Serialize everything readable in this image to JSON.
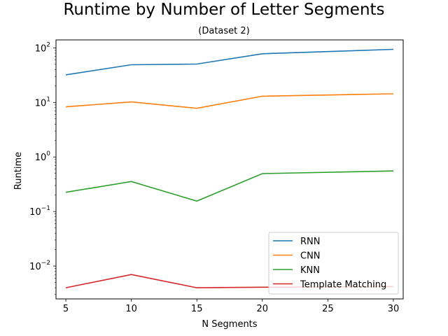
{
  "chart_data": {
    "type": "line",
    "title": "Runtime by Number of Letter Segments",
    "subtitle": "(Dataset 2)",
    "xlabel": "N Segments",
    "ylabel": "Runtime",
    "yscale": "log",
    "xlim": [
      4.25,
      30.75
    ],
    "ylim": [
      0.0025,
      140
    ],
    "x": [
      5,
      10,
      15,
      20,
      30
    ],
    "xticks": [
      5,
      10,
      15,
      20,
      25,
      30
    ],
    "yticks": [
      {
        "value": 0.01,
        "base": "10",
        "exp": "−2"
      },
      {
        "value": 0.1,
        "base": "10",
        "exp": "−1"
      },
      {
        "value": 1,
        "base": "10",
        "exp": "0"
      },
      {
        "value": 10,
        "base": "10",
        "exp": "1"
      },
      {
        "value": 100,
        "base": "10",
        "exp": "2"
      }
    ],
    "grid": false,
    "legend_position": "lower-right",
    "series": [
      {
        "name": "RNN",
        "color": "#1f77b4",
        "values": [
          32,
          49,
          50.5,
          78,
          94
        ]
      },
      {
        "name": "CNN",
        "color": "#ff7f0e",
        "values": [
          8.3,
          10.2,
          7.8,
          13,
          14.4
        ]
      },
      {
        "name": "KNN",
        "color": "#2ca02c",
        "values": [
          0.225,
          0.355,
          0.155,
          0.495,
          0.555
        ]
      },
      {
        "name": "Template Matching",
        "color": "#d62728",
        "values": [
          0.004,
          0.007,
          0.004,
          0.0041,
          0.0042
        ]
      }
    ]
  }
}
